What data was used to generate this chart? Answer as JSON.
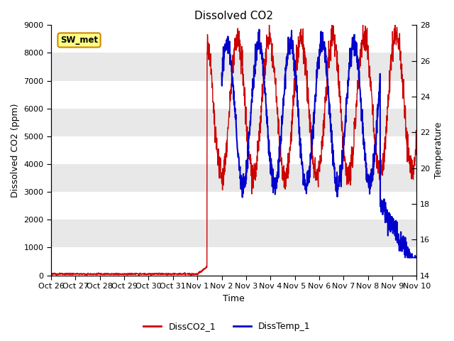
{
  "title": "Dissolved CO2",
  "xlabel": "Time",
  "ylabel_left": "Dissolved CO2 (ppm)",
  "ylabel_right": "Temperature",
  "annotation_text": "SW_met",
  "x_tick_labels": [
    "Oct 26",
    "Oct 27",
    "Oct 28",
    "Oct 29",
    "Oct 30",
    "Oct 31",
    "Nov 1",
    "Nov 2",
    "Nov 3",
    "Nov 4",
    "Nov 5",
    "Nov 6",
    "Nov 7",
    "Nov 8",
    "Nov 9",
    "Nov 10"
  ],
  "ylim_left": [
    0,
    9000
  ],
  "ylim_right": [
    14,
    28
  ],
  "yticks_left": [
    0,
    1000,
    2000,
    3000,
    4000,
    5000,
    6000,
    7000,
    8000,
    9000
  ],
  "yticks_right": [
    14,
    16,
    18,
    20,
    22,
    24,
    26,
    28
  ],
  "bg_color": "#e8e8e8",
  "grid_color": "#ffffff",
  "line1_color": "#cc0000",
  "line2_color": "#0000cc",
  "legend_label1": "DissCO2_1",
  "legend_label2": "DissTemp_1",
  "figsize": [
    6.4,
    4.8
  ],
  "dpi": 100
}
